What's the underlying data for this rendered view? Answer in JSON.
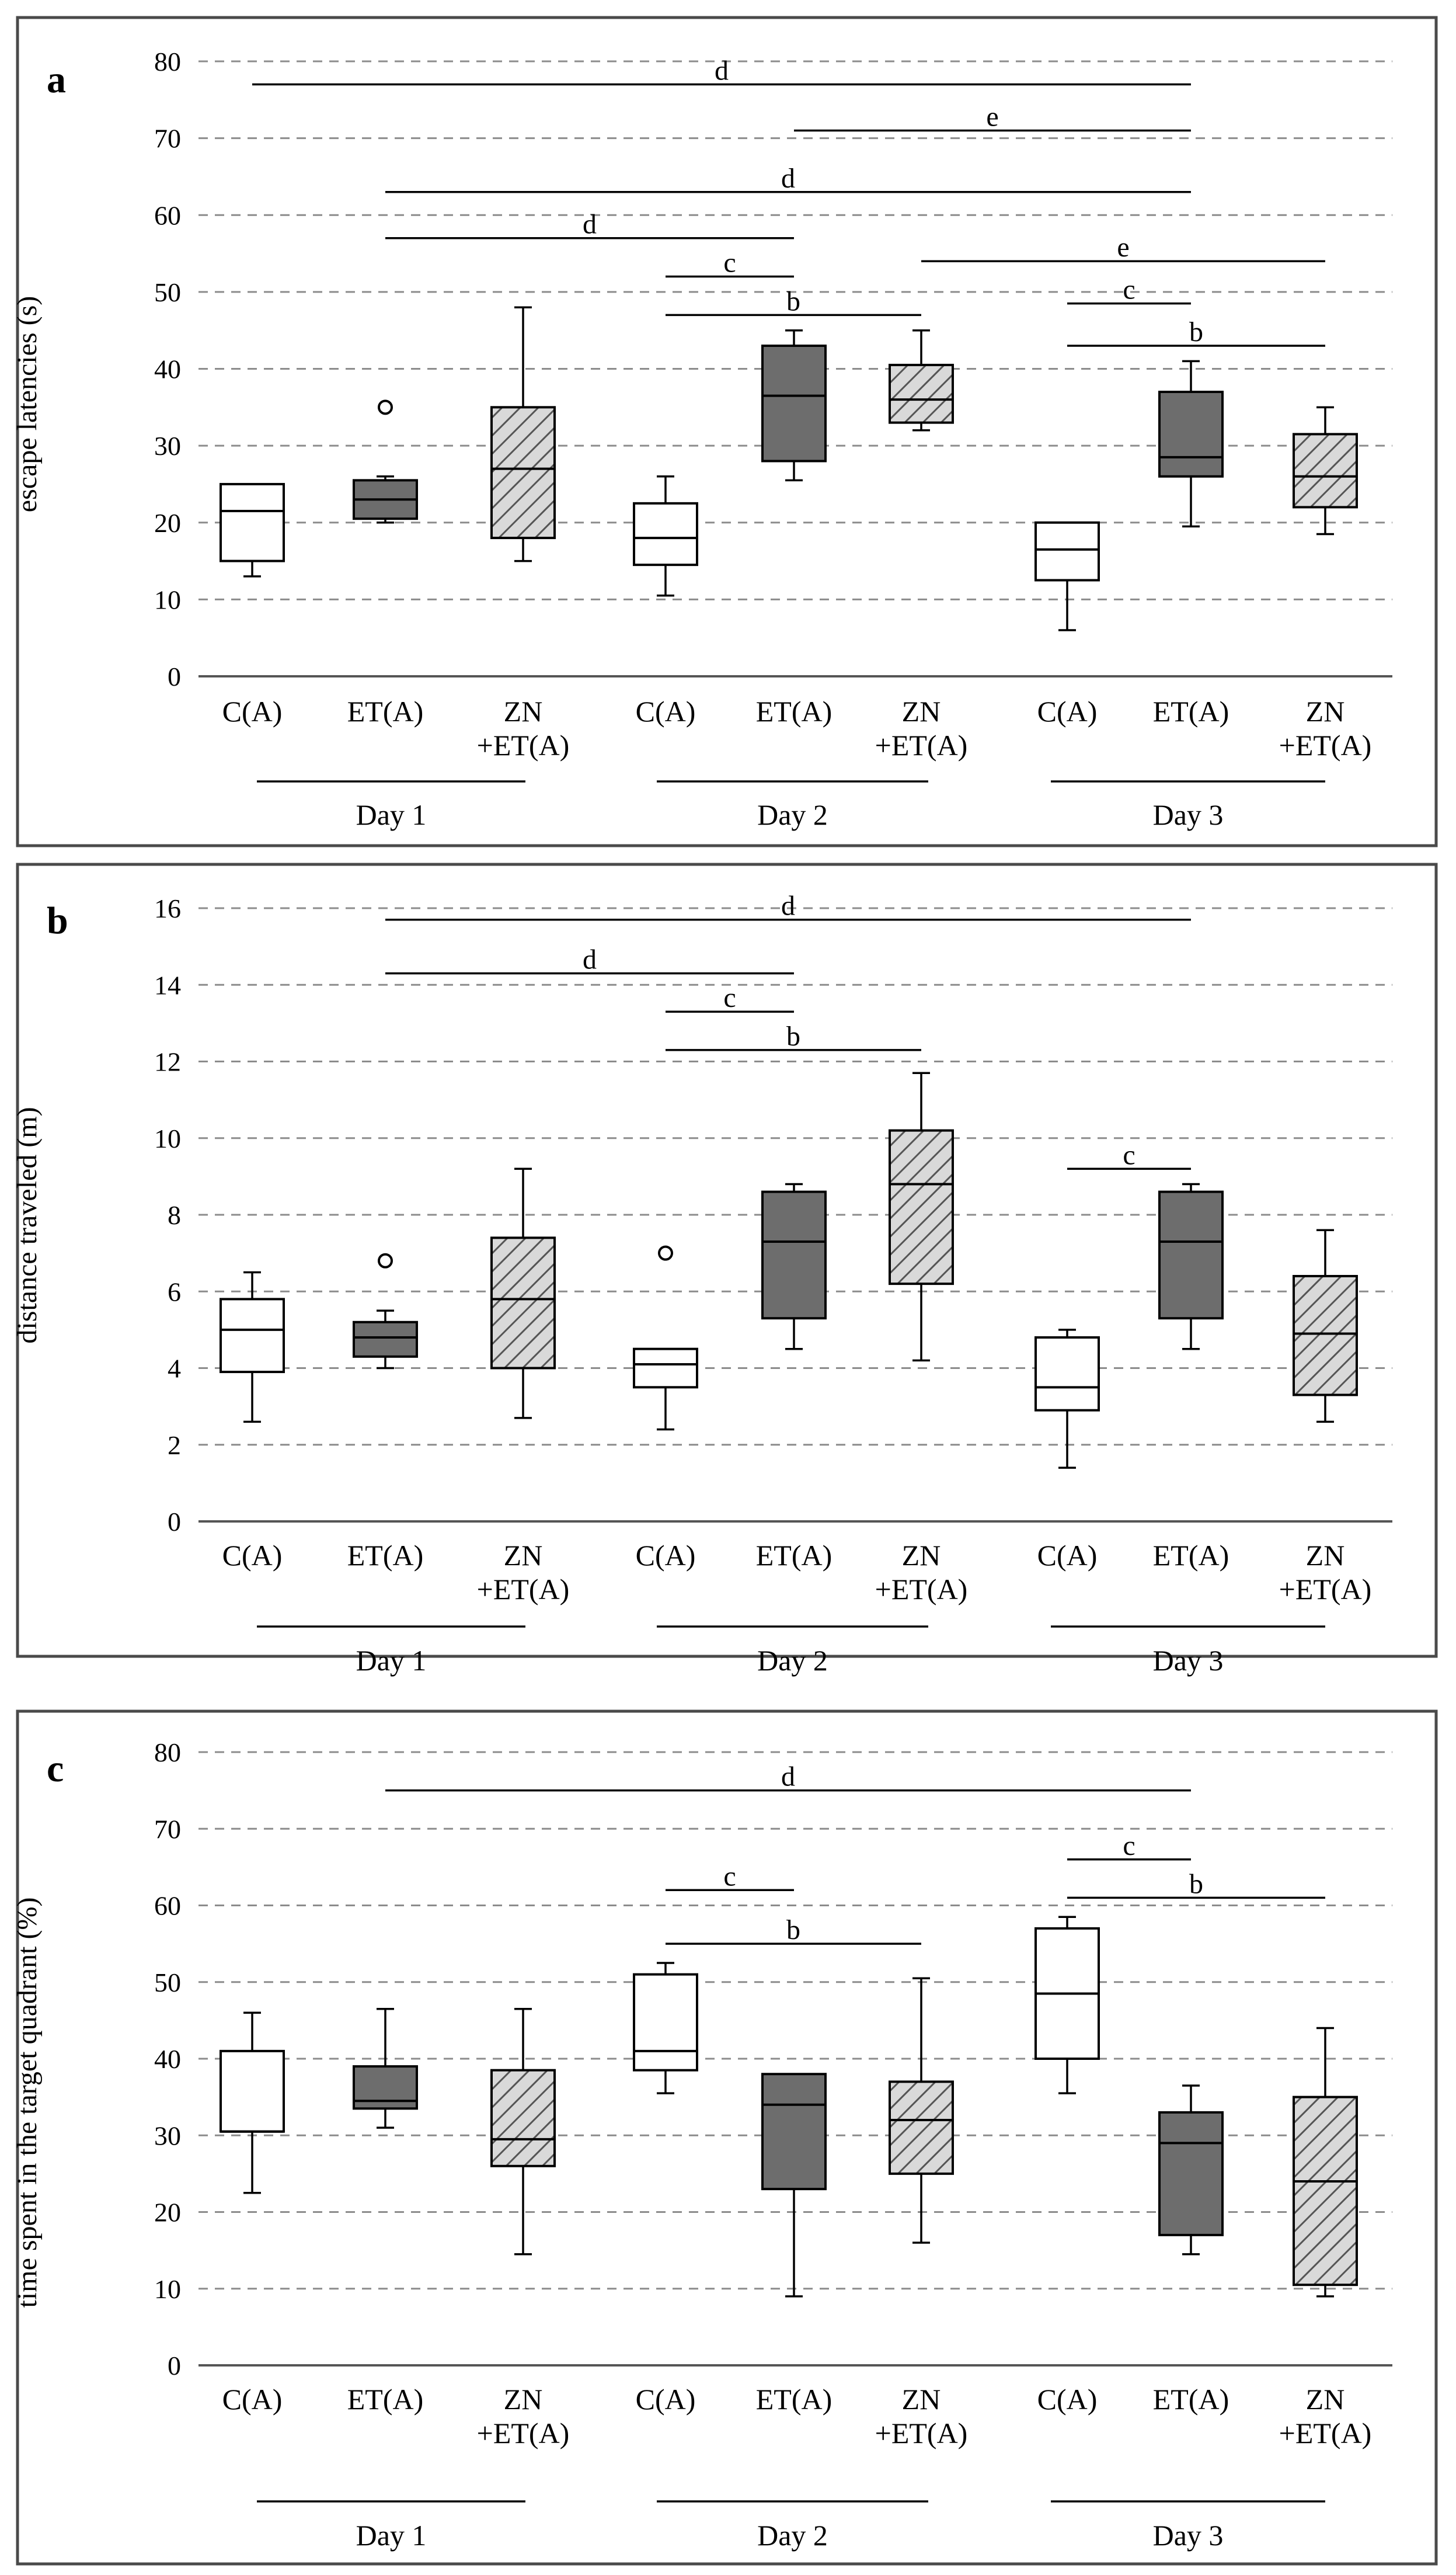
{
  "chart_data": [
    {
      "type": "box",
      "panel_label": "a",
      "ylabel": "escape latencies (s)",
      "ylim": [
        0,
        80
      ],
      "yticks": [
        0,
        10,
        20,
        30,
        40,
        50,
        60,
        70,
        80
      ],
      "grid": true,
      "groups": [
        {
          "label": "C(A)",
          "day": "Day 1",
          "style": "open",
          "whisker_low": 13,
          "q1": 15,
          "median": 21.5,
          "q3": 25,
          "whisker_high": 25,
          "outliers": []
        },
        {
          "label": "ET(A)",
          "day": "Day 1",
          "style": "dark",
          "whisker_low": 20,
          "q1": 20.5,
          "median": 23,
          "q3": 25.5,
          "whisker_high": 26,
          "outliers": [
            35
          ]
        },
        {
          "label": "ZN\n+ET(A)",
          "day": "Day 1",
          "style": "hatched",
          "whisker_low": 15,
          "q1": 18,
          "median": 27,
          "q3": 35,
          "whisker_high": 48,
          "outliers": []
        },
        {
          "label": "C(A)",
          "day": "Day 2",
          "style": "open",
          "whisker_low": 10.5,
          "q1": 14.5,
          "median": 18,
          "q3": 22.5,
          "whisker_high": 26,
          "outliers": []
        },
        {
          "label": "ET(A)",
          "day": "Day 2",
          "style": "dark",
          "whisker_low": 25.5,
          "q1": 28,
          "median": 36.5,
          "q3": 43,
          "whisker_high": 45,
          "outliers": []
        },
        {
          "label": "ZN\n+ET(A)",
          "day": "Day 2",
          "style": "hatched",
          "whisker_low": 32,
          "q1": 33,
          "median": 36,
          "q3": 40.5,
          "whisker_high": 45,
          "outliers": []
        },
        {
          "label": "C(A)",
          "day": "Day 3",
          "style": "open",
          "whisker_low": 6,
          "q1": 12.5,
          "median": 16.5,
          "q3": 20,
          "whisker_high": 20,
          "outliers": []
        },
        {
          "label": "ET(A)",
          "day": "Day 3",
          "style": "dark",
          "whisker_low": 19.5,
          "q1": 26,
          "median": 28.5,
          "q3": 37,
          "whisker_high": 41,
          "outliers": []
        },
        {
          "label": "ZN\n+ET(A)",
          "day": "Day 3",
          "style": "hatched",
          "whisker_low": 18.5,
          "q1": 22,
          "median": 26,
          "q3": 31.5,
          "whisker_high": 35,
          "outliers": []
        }
      ],
      "significance": [
        {
          "from": 0,
          "to": 7,
          "y": 77,
          "letter": "d"
        },
        {
          "from": 4,
          "to": 7,
          "y": 71,
          "letter": "e"
        },
        {
          "from": 1,
          "to": 7,
          "y": 63,
          "letter": "d"
        },
        {
          "from": 1,
          "to": 4,
          "y": 57,
          "letter": "d"
        },
        {
          "from": 3,
          "to": 4,
          "y": 52,
          "letter": "c"
        },
        {
          "from": 5,
          "to": 8,
          "y": 54,
          "letter": "e"
        },
        {
          "from": 6,
          "to": 7,
          "y": 48.5,
          "letter": "c"
        },
        {
          "from": 3,
          "to": 5,
          "y": 47,
          "letter": "b"
        },
        {
          "from": 6,
          "to": 8,
          "y": 43,
          "letter": "b"
        }
      ],
      "days": [
        "Day 1",
        "Day 2",
        "Day 3"
      ]
    },
    {
      "type": "box",
      "panel_label": "b",
      "ylabel": "distance traveled (m)",
      "ylim": [
        0,
        16
      ],
      "yticks": [
        0,
        2,
        4,
        6,
        8,
        10,
        12,
        14,
        16
      ],
      "grid": true,
      "groups": [
        {
          "label": "C(A)",
          "day": "Day 1",
          "style": "open",
          "whisker_low": 2.6,
          "q1": 3.9,
          "median": 5,
          "q3": 5.8,
          "whisker_high": 6.5,
          "outliers": []
        },
        {
          "label": "ET(A)",
          "day": "Day 1",
          "style": "dark",
          "whisker_low": 4,
          "q1": 4.3,
          "median": 4.8,
          "q3": 5.2,
          "whisker_high": 5.5,
          "outliers": [
            6.8
          ]
        },
        {
          "label": "ZN\n+ET(A)",
          "day": "Day 1",
          "style": "hatched",
          "whisker_low": 2.7,
          "q1": 4,
          "median": 5.8,
          "q3": 7.4,
          "whisker_high": 9.2,
          "outliers": []
        },
        {
          "label": "C(A)",
          "day": "Day 2",
          "style": "open",
          "whisker_low": 2.4,
          "q1": 3.5,
          "median": 4.1,
          "q3": 4.5,
          "whisker_high": 4.5,
          "outliers": [
            7
          ]
        },
        {
          "label": "ET(A)",
          "day": "Day 2",
          "style": "dark",
          "whisker_low": 4.5,
          "q1": 5.3,
          "median": 7.3,
          "q3": 8.6,
          "whisker_high": 8.8,
          "outliers": []
        },
        {
          "label": "ZN\n+ET(A)",
          "day": "Day 2",
          "style": "hatched",
          "whisker_low": 4.2,
          "q1": 6.2,
          "median": 8.8,
          "q3": 10.2,
          "whisker_high": 11.7,
          "outliers": []
        },
        {
          "label": "C(A)",
          "day": "Day 3",
          "style": "open",
          "whisker_low": 1.4,
          "q1": 2.9,
          "median": 3.5,
          "q3": 4.8,
          "whisker_high": 5,
          "outliers": []
        },
        {
          "label": "ET(A)",
          "day": "Day 3",
          "style": "dark",
          "whisker_low": 4.5,
          "q1": 5.3,
          "median": 7.3,
          "q3": 8.6,
          "whisker_high": 8.8,
          "outliers": []
        },
        {
          "label": "ZN\n+ET(A)",
          "day": "Day 3",
          "style": "hatched",
          "whisker_low": 2.6,
          "q1": 3.3,
          "median": 4.9,
          "q3": 6.4,
          "whisker_high": 7.6,
          "outliers": []
        }
      ],
      "significance": [
        {
          "from": 1,
          "to": 7,
          "y": 15.7,
          "letter": "d"
        },
        {
          "from": 1,
          "to": 4,
          "y": 14.3,
          "letter": "d"
        },
        {
          "from": 3,
          "to": 4,
          "y": 13.3,
          "letter": "c"
        },
        {
          "from": 3,
          "to": 5,
          "y": 12.3,
          "letter": "b"
        },
        {
          "from": 6,
          "to": 7,
          "y": 9.2,
          "letter": "c"
        }
      ],
      "days": [
        "Day 1",
        "Day 2",
        "Day 3"
      ]
    },
    {
      "type": "box",
      "panel_label": "c",
      "ylabel": "time spent in the target quadrant (%)",
      "ylim": [
        0,
        80
      ],
      "yticks": [
        0,
        10,
        20,
        30,
        40,
        50,
        60,
        70,
        80
      ],
      "grid": true,
      "groups": [
        {
          "label": "C(A)",
          "day": "Day 1",
          "style": "open",
          "whisker_low": 22.5,
          "q1": 30.5,
          "median": 30.5,
          "q3": 41,
          "whisker_high": 46,
          "outliers": []
        },
        {
          "label": "ET(A)",
          "day": "Day 1",
          "style": "dark",
          "whisker_low": 31,
          "q1": 33.5,
          "median": 34.5,
          "q3": 39,
          "whisker_high": 46.5,
          "outliers": []
        },
        {
          "label": "ZN\n+ET(A)",
          "day": "Day 1",
          "style": "hatched",
          "whisker_low": 14.5,
          "q1": 26,
          "median": 29.5,
          "q3": 38.5,
          "whisker_high": 46.5,
          "outliers": []
        },
        {
          "label": "C(A)",
          "day": "Day 2",
          "style": "open",
          "whisker_low": 35.5,
          "q1": 38.5,
          "median": 41,
          "q3": 51,
          "whisker_high": 52.5,
          "outliers": []
        },
        {
          "label": "ET(A)",
          "day": "Day 2",
          "style": "dark",
          "whisker_low": 9,
          "q1": 23,
          "median": 34,
          "q3": 38,
          "whisker_high": 38,
          "outliers": []
        },
        {
          "label": "ZN\n+ET(A)",
          "day": "Day 2",
          "style": "hatched",
          "whisker_low": 16,
          "q1": 25,
          "median": 32,
          "q3": 37,
          "whisker_high": 50.5,
          "outliers": []
        },
        {
          "label": "C(A)",
          "day": "Day 3",
          "style": "open",
          "whisker_low": 35.5,
          "q1": 40,
          "median": 48.5,
          "q3": 57,
          "whisker_high": 58.5,
          "outliers": []
        },
        {
          "label": "ET(A)",
          "day": "Day 3",
          "style": "dark",
          "whisker_low": 14.5,
          "q1": 17,
          "median": 29,
          "q3": 33,
          "whisker_high": 36.5,
          "outliers": []
        },
        {
          "label": "ZN\n+ET(A)",
          "day": "Day 3",
          "style": "hatched",
          "whisker_low": 9,
          "q1": 10.5,
          "median": 24,
          "q3": 35,
          "whisker_high": 44,
          "outliers": []
        }
      ],
      "significance": [
        {
          "from": 1,
          "to": 7,
          "y": 75,
          "letter": "d"
        },
        {
          "from": 6,
          "to": 7,
          "y": 66,
          "letter": "c"
        },
        {
          "from": 3,
          "to": 4,
          "y": 62,
          "letter": "c"
        },
        {
          "from": 6,
          "to": 8,
          "y": 61,
          "letter": "b"
        },
        {
          "from": 3,
          "to": 5,
          "y": 55,
          "letter": "b"
        }
      ],
      "days": [
        "Day 1",
        "Day 2",
        "Day 3"
      ]
    }
  ],
  "colors": {
    "dark_box": "#6d6d6d",
    "hatch_fill": "#d9d9d9",
    "hatch_line": "#555555",
    "open_box": "#ffffff",
    "grid": "#8c8c8c",
    "axis": "#555555",
    "frame": "#4a4a4a"
  }
}
